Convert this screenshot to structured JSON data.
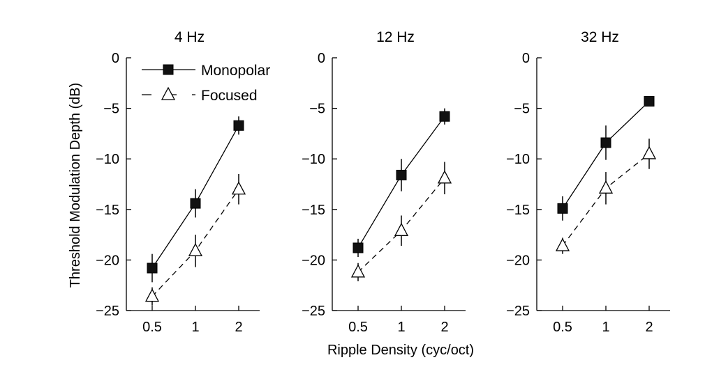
{
  "chart_data": {
    "type": "line",
    "ylabel": "Threshold Modulation Depth (dB)",
    "xlabel": "Ripple Density (cyc/oct)",
    "x_categories": [
      "0.5",
      "1",
      "2"
    ],
    "ylim": [
      -25,
      0
    ],
    "yticks": [
      0,
      -5,
      -10,
      -15,
      -20,
      -25
    ],
    "ytick_labels": [
      "0",
      "−5",
      "−10",
      "−15",
      "−20",
      "−25"
    ],
    "grid": false,
    "legend": {
      "placement": "top-left of first panel",
      "entries": [
        {
          "name": "Monopolar",
          "marker": "filled-square",
          "line": "solid"
        },
        {
          "name": "Focused",
          "marker": "open-triangle",
          "line": "dashed"
        }
      ]
    },
    "panels": [
      {
        "title": "4 Hz",
        "series": [
          {
            "name": "Monopolar",
            "values": [
              -20.8,
              -14.4,
              -6.7
            ],
            "errors": [
              1.4,
              1.4,
              0.9
            ]
          },
          {
            "name": "Focused",
            "values": [
              -23.6,
              -19.1,
              -13.0
            ],
            "errors": [
              0.9,
              1.6,
              1.5
            ]
          }
        ]
      },
      {
        "title": "12 Hz",
        "series": [
          {
            "name": "Monopolar",
            "values": [
              -18.8,
              -11.6,
              -5.8
            ],
            "errors": [
              0.9,
              1.6,
              0.8
            ]
          },
          {
            "name": "Focused",
            "values": [
              -21.2,
              -17.1,
              -11.9
            ],
            "errors": [
              0.9,
              1.5,
              1.6
            ]
          }
        ]
      },
      {
        "title": "32 Hz",
        "series": [
          {
            "name": "Monopolar",
            "values": [
              -14.9,
              -8.4,
              -4.3
            ],
            "errors": [
              1.2,
              1.7,
              0.4
            ]
          },
          {
            "name": "Focused",
            "values": [
              -18.6,
              -12.9,
              -9.5
            ],
            "errors": [
              0.8,
              1.6,
              1.5
            ]
          }
        ]
      }
    ]
  }
}
